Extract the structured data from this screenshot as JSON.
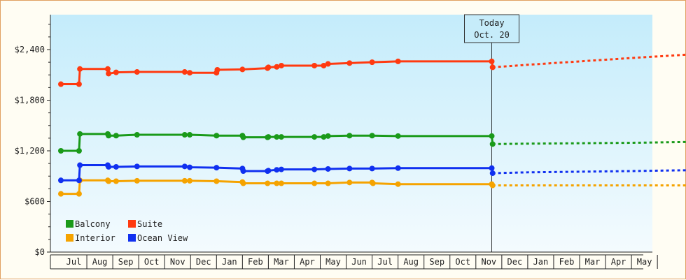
{
  "chart_data": {
    "type": "line",
    "title": "",
    "xlabel": "",
    "ylabel": "",
    "ylim": [
      0,
      2400
    ],
    "yticks": [
      "$0",
      "$600",
      "$1,200",
      "$1,800",
      "$2,400"
    ],
    "grid": false,
    "legend_position": "bottom-left",
    "months": [
      "Jul",
      "Aug",
      "Sep",
      "Oct",
      "Nov",
      "Dec",
      "Jan",
      "Feb",
      "Mar",
      "Apr",
      "May",
      "Jun",
      "Jul",
      "Aug",
      "Sep",
      "Oct",
      "Nov",
      "Dec",
      "Jan",
      "Feb",
      "Mar",
      "Apr",
      "May"
    ],
    "today": {
      "label_line1": "Today",
      "label_line2": "Oct. 20",
      "date": "2014-10-20"
    },
    "series": [
      {
        "name": "Balcony",
        "color": "#1a9a1a",
        "history": [
          [
            "2013-06-01",
            1200
          ],
          [
            "2013-06-22",
            1200
          ],
          [
            "2013-06-23",
            1400
          ],
          [
            "2013-07-26",
            1400
          ],
          [
            "2013-07-27",
            1380
          ],
          [
            "2013-08-05",
            1380
          ],
          [
            "2013-08-30",
            1390
          ],
          [
            "2013-10-25",
            1390
          ],
          [
            "2013-10-31",
            1390
          ],
          [
            "2013-12-01",
            1380
          ],
          [
            "2014-01-01",
            1380
          ],
          [
            "2014-01-02",
            1360
          ],
          [
            "2014-01-31",
            1360
          ],
          [
            "2014-02-01",
            1365
          ],
          [
            "2014-02-10",
            1365
          ],
          [
            "2014-02-15",
            1365
          ],
          [
            "2014-03-25",
            1365
          ],
          [
            "2014-04-05",
            1365
          ],
          [
            "2014-04-10",
            1375
          ],
          [
            "2014-05-05",
            1380
          ],
          [
            "2014-06-01",
            1380
          ],
          [
            "2014-07-01",
            1375
          ],
          [
            "2014-10-20",
            1375
          ],
          [
            "2014-10-21",
            1280
          ]
        ],
        "forecast": [
          [
            "2014-10-21",
            1280
          ],
          [
            "2014-12-01",
            1285
          ],
          [
            "2015-04-01",
            1295
          ],
          [
            "2015-06-05",
            1305
          ]
        ]
      },
      {
        "name": "Suite",
        "color": "#ff3a10",
        "history": [
          [
            "2013-06-01",
            1990
          ],
          [
            "2013-06-22",
            1990
          ],
          [
            "2013-06-23",
            2170
          ],
          [
            "2013-07-26",
            2170
          ],
          [
            "2013-07-27",
            2115
          ],
          [
            "2013-08-05",
            2130
          ],
          [
            "2013-08-30",
            2135
          ],
          [
            "2013-10-25",
            2135
          ],
          [
            "2013-10-31",
            2125
          ],
          [
            "2013-12-01",
            2125
          ],
          [
            "2013-12-02",
            2160
          ],
          [
            "2014-01-01",
            2165
          ],
          [
            "2014-01-31",
            2180
          ],
          [
            "2014-02-01",
            2190
          ],
          [
            "2014-02-10",
            2195
          ],
          [
            "2014-02-15",
            2210
          ],
          [
            "2014-03-25",
            2210
          ],
          [
            "2014-04-05",
            2210
          ],
          [
            "2014-04-10",
            2230
          ],
          [
            "2014-05-05",
            2240
          ],
          [
            "2014-06-01",
            2250
          ],
          [
            "2014-07-01",
            2260
          ],
          [
            "2014-10-20",
            2260
          ],
          [
            "2014-10-21",
            2190
          ]
        ],
        "forecast": [
          [
            "2014-10-21",
            2190
          ],
          [
            "2014-12-01",
            2220
          ],
          [
            "2015-04-01",
            2300
          ],
          [
            "2015-06-05",
            2340
          ]
        ]
      },
      {
        "name": "Interior",
        "color": "#f5a300",
        "history": [
          [
            "2013-06-01",
            690
          ],
          [
            "2013-06-22",
            690
          ],
          [
            "2013-06-23",
            850
          ],
          [
            "2013-07-26",
            850
          ],
          [
            "2013-07-27",
            840
          ],
          [
            "2013-08-05",
            840
          ],
          [
            "2013-08-30",
            845
          ],
          [
            "2013-10-25",
            845
          ],
          [
            "2013-10-31",
            845
          ],
          [
            "2013-12-01",
            840
          ],
          [
            "2014-01-01",
            830
          ],
          [
            "2014-01-02",
            815
          ],
          [
            "2014-01-31",
            815
          ],
          [
            "2014-02-10",
            815
          ],
          [
            "2014-02-15",
            815
          ],
          [
            "2014-03-25",
            815
          ],
          [
            "2014-04-10",
            815
          ],
          [
            "2014-05-05",
            825
          ],
          [
            "2014-06-01",
            825
          ],
          [
            "2014-06-02",
            815
          ],
          [
            "2014-07-01",
            805
          ],
          [
            "2014-10-20",
            805
          ],
          [
            "2014-10-21",
            790
          ]
        ],
        "forecast": [
          [
            "2014-10-21",
            790
          ],
          [
            "2015-06-05",
            790
          ]
        ]
      },
      {
        "name": "Ocean View",
        "color": "#1030f0",
        "history": [
          [
            "2013-06-01",
            850
          ],
          [
            "2013-06-22",
            850
          ],
          [
            "2013-06-23",
            1030
          ],
          [
            "2013-07-26",
            1030
          ],
          [
            "2013-07-27",
            1010
          ],
          [
            "2013-08-05",
            1010
          ],
          [
            "2013-08-30",
            1015
          ],
          [
            "2013-10-25",
            1015
          ],
          [
            "2013-10-31",
            1005
          ],
          [
            "2013-12-01",
            1000
          ],
          [
            "2014-01-01",
            990
          ],
          [
            "2014-01-02",
            960
          ],
          [
            "2014-01-31",
            960
          ],
          [
            "2014-02-01",
            965
          ],
          [
            "2014-02-10",
            975
          ],
          [
            "2014-02-15",
            980
          ],
          [
            "2014-03-25",
            980
          ],
          [
            "2014-04-10",
            985
          ],
          [
            "2014-05-05",
            990
          ],
          [
            "2014-06-01",
            990
          ],
          [
            "2014-07-01",
            995
          ],
          [
            "2014-10-20",
            995
          ],
          [
            "2014-10-21",
            935
          ]
        ],
        "forecast": [
          [
            "2014-10-21",
            935
          ],
          [
            "2014-12-01",
            945
          ],
          [
            "2015-04-01",
            960
          ],
          [
            "2015-06-05",
            970
          ]
        ]
      }
    ]
  }
}
